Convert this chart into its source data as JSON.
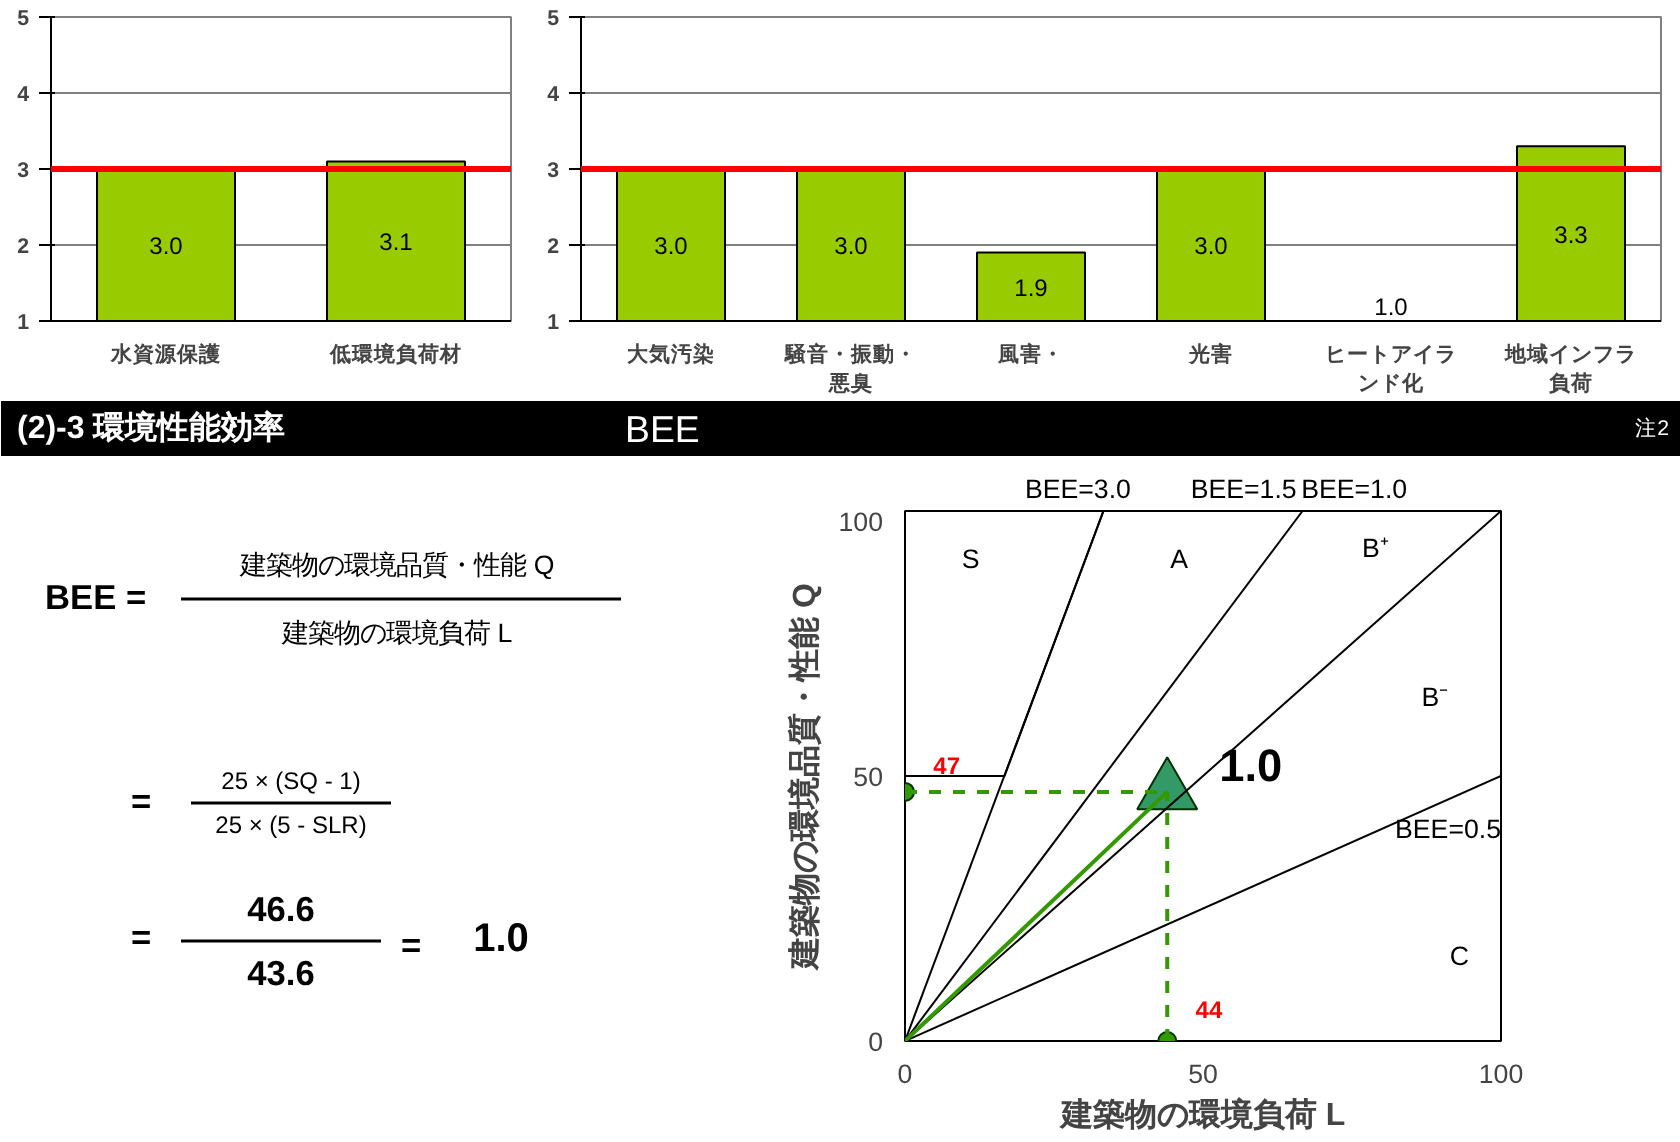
{
  "chart_data": [
    {
      "type": "bar",
      "categories": [
        "水資源保護",
        "低環境負荷材"
      ],
      "values": [
        3.0,
        3.1
      ],
      "value_labels": [
        "3.0",
        "3.1"
      ],
      "color": "#99cc00",
      "ylim": [
        1,
        5
      ],
      "yticks": [
        1,
        2,
        3,
        4,
        5
      ],
      "grid": "y",
      "ref_lines": [
        {
          "axis": "y",
          "value": 3,
          "color": "#ff0000"
        }
      ]
    },
    {
      "type": "bar",
      "categories": [
        "大気汚染",
        "騒音・振動・悪臭",
        "風害・",
        "光害",
        "ヒートアイランド化",
        "地域インフラ負荷"
      ],
      "values": [
        3.0,
        3.0,
        1.9,
        3.0,
        1.0,
        3.3
      ],
      "value_labels": [
        "3.0",
        "3.0",
        "1.9",
        "3.0",
        "1.0",
        "3.3"
      ],
      "color": "#99cc00",
      "ylim": [
        1,
        5
      ],
      "yticks": [
        1,
        2,
        3,
        4,
        5
      ],
      "grid": "y",
      "ref_lines": [
        {
          "axis": "y",
          "value": 3,
          "color": "#ff0000"
        }
      ]
    },
    {
      "type": "other",
      "title": "(2)-3  環境性能効率",
      "subtitle": "BEE",
      "annotations": [
        "注2",
        "BEE =",
        "建築物の環境品質・性能  Q",
        "建築物の環境負荷  L",
        "=",
        "25 × (SQ - 1)",
        "25 × (5 - SLR)",
        "=",
        "46.6",
        "43.6",
        "=",
        "1.0"
      ]
    },
    {
      "type": "line",
      "xlabel": "建築物の環境負荷 L",
      "ylabel": "建築物の環境品質・性能 Q",
      "xlim": [
        0,
        100
      ],
      "ylim": [
        0,
        100
      ],
      "xticks": [
        0,
        50,
        100
      ],
      "yticks": [
        0,
        50,
        100
      ],
      "grid": false,
      "series": [
        {
          "type": "line",
          "color": "#000000",
          "x": [
            0,
            33.3
          ],
          "values": [
            0,
            100
          ]
        },
        {
          "type": "line",
          "color": "#000000",
          "x": [
            0,
            66.7
          ],
          "values": [
            0,
            100
          ]
        },
        {
          "type": "line",
          "color": "#000000",
          "x": [
            0,
            100
          ],
          "values": [
            0,
            100
          ]
        },
        {
          "type": "line",
          "color": "#000000",
          "x": [
            0,
            100
          ],
          "values": [
            0,
            50
          ]
        },
        {
          "type": "line",
          "color": "#000000",
          "x": [
            0,
            16.7,
            33.3
          ],
          "values": [
            50,
            50,
            100
          ]
        },
        {
          "type": "line",
          "color": "#339900",
          "x": [
            0,
            44
          ],
          "values": [
            0,
            47
          ]
        },
        {
          "type": "line",
          "color": "#339900",
          "line_style": "dashed",
          "x": [
            0,
            44
          ],
          "values": [
            47,
            47
          ]
        },
        {
          "type": "line",
          "color": "#339900",
          "line_style": "dashed",
          "x": [
            44,
            44
          ],
          "values": [
            0,
            47
          ]
        },
        {
          "type": "scatter",
          "color": "#339900",
          "marker": "circle",
          "x": [
            0,
            44
          ],
          "values": [
            47,
            0
          ]
        },
        {
          "type": "scatter",
          "color": "#339966",
          "marker": "triangle",
          "x": [
            44
          ],
          "values": [
            47
          ]
        }
      ],
      "annotations": [
        "BEE=3.0",
        "BEE=1.5",
        "BEE=1.0",
        "S",
        "A",
        "B⁺",
        "B⁻",
        "BEE=0.5",
        "C",
        "1.0",
        "47",
        "44"
      ]
    }
  ]
}
